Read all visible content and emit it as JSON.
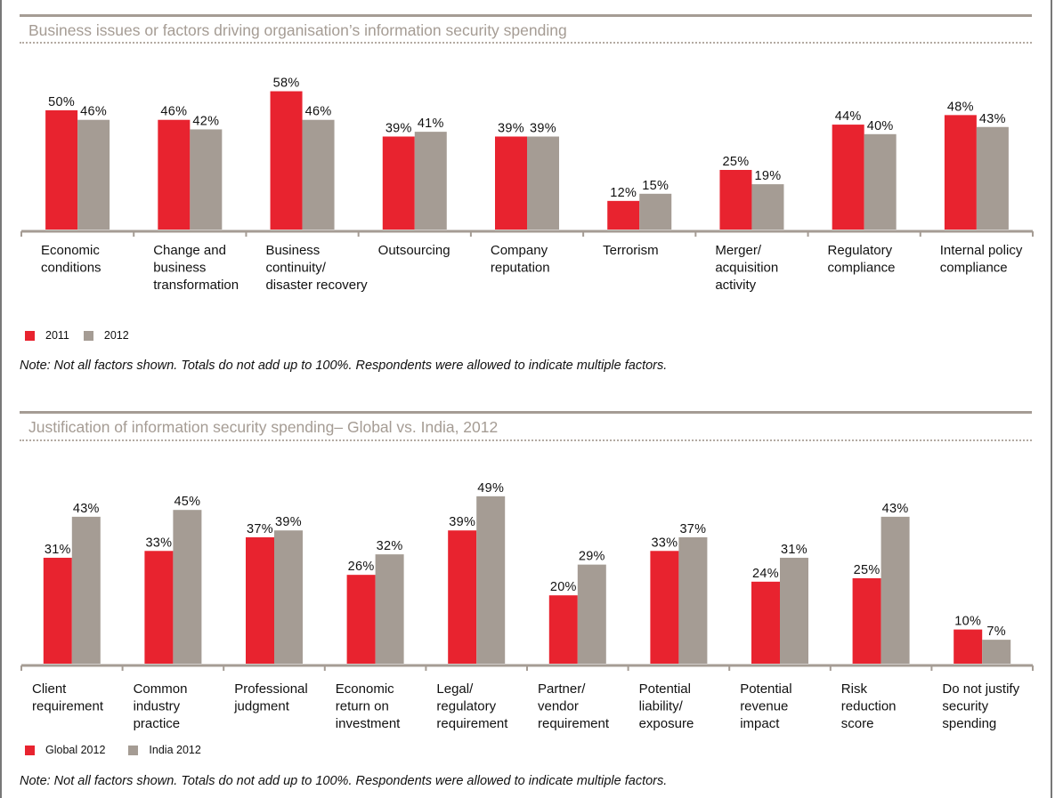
{
  "colors": {
    "series_a": "#e8232f",
    "series_b": "#a59c94",
    "axis": "#a59c94",
    "title": "#a59c94"
  },
  "chart_data": [
    {
      "type": "bar",
      "title": "Business issues or factors driving organisation’s information security spending",
      "xlabel": "",
      "ylabel": "",
      "ylim": [
        0,
        60
      ],
      "grid": false,
      "legend_position": "bottom-left",
      "categories": [
        [
          "Economic",
          "conditions"
        ],
        [
          "Change and",
          "business",
          "transformation"
        ],
        [
          "Business",
          "continuity/",
          "disaster recovery"
        ],
        [
          "Outsourcing"
        ],
        [
          "Company",
          "reputation"
        ],
        [
          "Terrorism"
        ],
        [
          "Merger/",
          "acquisition",
          "activity"
        ],
        [
          "Regulatory",
          "compliance"
        ],
        [
          "Internal policy",
          "compliance"
        ]
      ],
      "series": [
        {
          "name": "2011",
          "values": [
            50,
            46,
            58,
            39,
            39,
            12,
            25,
            44,
            48
          ]
        },
        {
          "name": "2012",
          "values": [
            46,
            42,
            46,
            41,
            39,
            15,
            19,
            40,
            43
          ]
        }
      ],
      "value_suffix": "%",
      "note": "Note: Not all factors shown. Totals do not add up to 100%. Respondents were allowed to indicate multiple factors."
    },
    {
      "type": "bar",
      "title": "Justification of information security spending– Global vs. India, 2012",
      "xlabel": "",
      "ylabel": "",
      "ylim": [
        0,
        60
      ],
      "grid": false,
      "legend_position": "bottom-left",
      "categories": [
        [
          "Client",
          "requirement"
        ],
        [
          "Common",
          "industry",
          "practice"
        ],
        [
          "Professional",
          "judgment"
        ],
        [
          "Economic",
          "return on",
          "investment"
        ],
        [
          "Legal/",
          "regulatory",
          "requirement"
        ],
        [
          "Partner/",
          "vendor",
          "requirement"
        ],
        [
          "Potential",
          "liability/",
          "exposure"
        ],
        [
          "Potential",
          "revenue",
          "impact"
        ],
        [
          "Risk",
          "reduction",
          "score"
        ],
        [
          "Do not justify",
          "security",
          "spending"
        ]
      ],
      "series": [
        {
          "name": "Global 2012",
          "values": [
            31,
            33,
            37,
            26,
            39,
            20,
            33,
            24,
            25,
            10
          ]
        },
        {
          "name": "India 2012",
          "values": [
            43,
            45,
            39,
            32,
            49,
            29,
            37,
            31,
            43,
            7
          ]
        }
      ],
      "value_suffix": "%",
      "note": "Note: Not all factors shown. Totals do not add up to 100%. Respondents were allowed to indicate multiple factors."
    }
  ]
}
